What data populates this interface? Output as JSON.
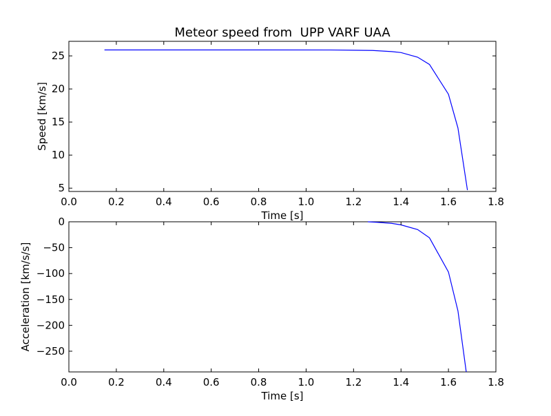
{
  "chart_data": [
    {
      "type": "line",
      "title": "Meteor speed from  UPP VARF UAA",
      "xlabel": "Time [s]",
      "ylabel": "Speed [km/s]",
      "xlim": [
        0.0,
        1.8
      ],
      "ylim": [
        4.5,
        27.2
      ],
      "xticks": [
        "0.0",
        "0.2",
        "0.4",
        "0.6",
        "0.8",
        "1.0",
        "1.2",
        "1.4",
        "1.6",
        "1.8"
      ],
      "yticks": [
        "5",
        "10",
        "15",
        "20",
        "25"
      ],
      "grid": false,
      "color": "#0000ff",
      "series": [
        {
          "x": [
            0.15,
            0.4,
            0.8,
            1.1,
            1.28,
            1.36,
            1.4,
            1.47,
            1.52,
            1.6,
            1.64,
            1.68
          ],
          "y": [
            25.9,
            25.9,
            25.9,
            25.89,
            25.82,
            25.65,
            25.5,
            24.8,
            23.7,
            19.2,
            14.1,
            4.7
          ]
        }
      ]
    },
    {
      "type": "line",
      "title": "",
      "xlabel": "Time [s]",
      "ylabel": "Acceleration [km/s/s]",
      "xlim": [
        0.0,
        1.8
      ],
      "ylim": [
        -290,
        0
      ],
      "xticks": [
        "0.0",
        "0.2",
        "0.4",
        "0.6",
        "0.8",
        "1.0",
        "1.2",
        "1.4",
        "1.6",
        "1.8"
      ],
      "yticks": [
        "0",
        "−50",
        "−100",
        "−150",
        "−200",
        "−250"
      ],
      "grid": false,
      "color": "#0000ff",
      "series": [
        {
          "x": [
            1.26,
            1.3,
            1.36,
            1.4,
            1.47,
            1.52,
            1.6,
            1.64,
            1.675
          ],
          "y": [
            0,
            -1,
            -3,
            -6,
            -15,
            -31,
            -97,
            -172,
            -290
          ]
        }
      ]
    }
  ]
}
